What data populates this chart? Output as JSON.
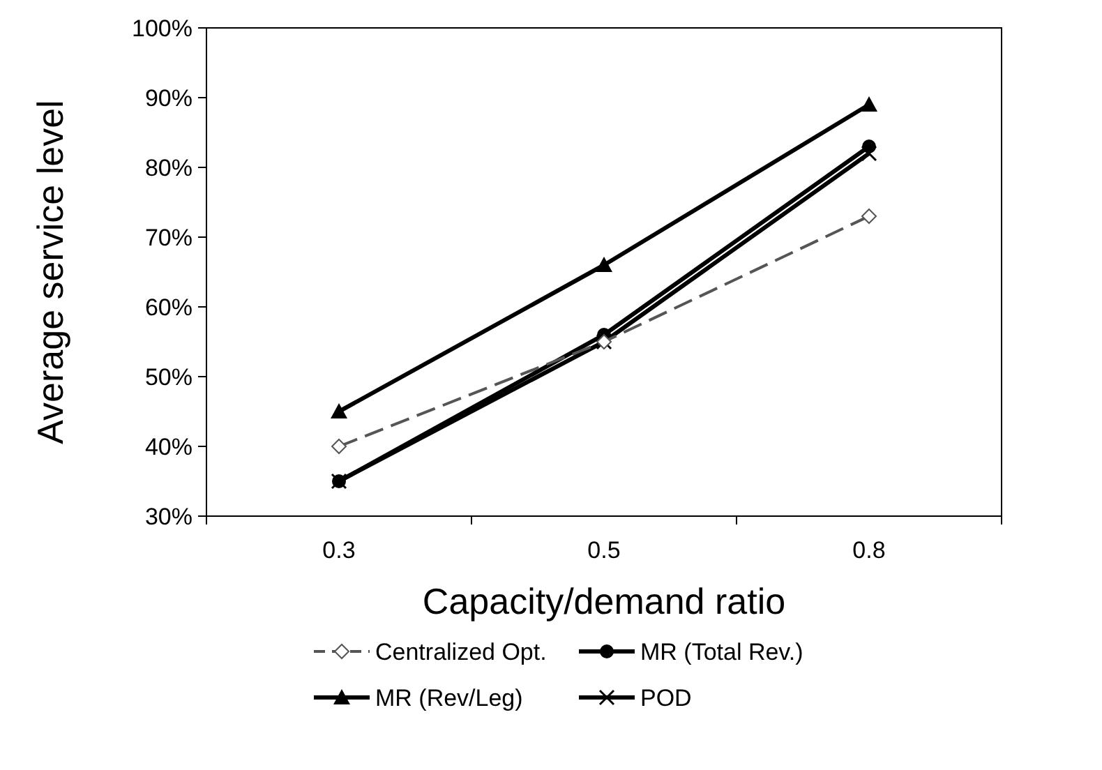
{
  "chart_data": {
    "type": "line",
    "xlabel": "Capacity/demand ratio",
    "ylabel": "Average service level",
    "categories": [
      "0.3",
      "0.5",
      "0.8"
    ],
    "ylim": [
      0.3,
      1.0
    ],
    "yticks": [
      {
        "value": 0.3,
        "label": "30%"
      },
      {
        "value": 0.4,
        "label": "40%"
      },
      {
        "value": 0.5,
        "label": "50%"
      },
      {
        "value": 0.6,
        "label": "60%"
      },
      {
        "value": 0.7,
        "label": "70%"
      },
      {
        "value": 0.8,
        "label": "80%"
      },
      {
        "value": 0.9,
        "label": "90%"
      },
      {
        "value": 1.0,
        "label": "100%"
      }
    ],
    "grid": false,
    "legend": "bottom",
    "series": [
      {
        "name": "Centralized Opt.",
        "color": "#555555",
        "values": [
          0.4,
          0.55,
          0.73
        ],
        "marker": "diamond",
        "line_style": "dashed"
      },
      {
        "name": "MR (Total Rev.)",
        "color": "#000000",
        "values": [
          0.35,
          0.56,
          0.83
        ],
        "marker": "circle",
        "line_style": "solid"
      },
      {
        "name": "MR (Rev/Leg)",
        "color": "#000000",
        "values": [
          0.45,
          0.66,
          0.89
        ],
        "marker": "triangle",
        "line_style": "solid"
      },
      {
        "name": "POD",
        "color": "#000000",
        "values": [
          0.35,
          0.55,
          0.82
        ],
        "marker": "cross",
        "line_style": "solid"
      }
    ]
  }
}
